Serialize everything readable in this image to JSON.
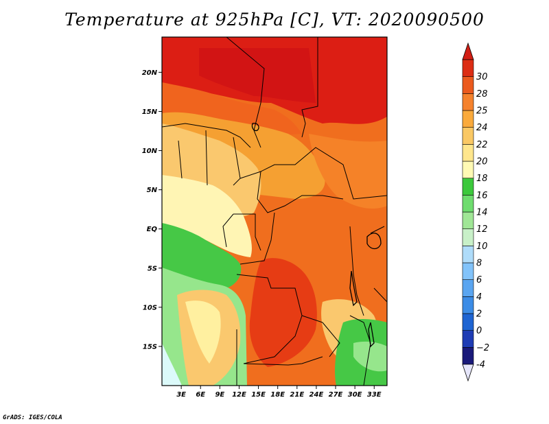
{
  "title": "Temperature at 925hPa [C], VT: 2020090500",
  "footer": "GrADS: IGES/COLA",
  "map": {
    "lon_range": [
      0,
      35
    ],
    "lat_range": [
      -20,
      24.5
    ],
    "lat_labels": [
      {
        "lat": 20,
        "label": "20N"
      },
      {
        "lat": 15,
        "label": "15N"
      },
      {
        "lat": 10,
        "label": "10N"
      },
      {
        "lat": 5,
        "label": "5N"
      },
      {
        "lat": 0,
        "label": "EQ"
      },
      {
        "lat": -5,
        "label": "5S"
      },
      {
        "lat": -10,
        "label": "10S"
      },
      {
        "lat": -15,
        "label": "15S"
      }
    ],
    "lon_labels": [
      {
        "lon": 3,
        "label": "3E"
      },
      {
        "lon": 6,
        "label": "6E"
      },
      {
        "lon": 9,
        "label": "9E"
      },
      {
        "lon": 12,
        "label": "12E"
      },
      {
        "lon": 15,
        "label": "15E"
      },
      {
        "lon": 18,
        "label": "18E"
      },
      {
        "lon": 21,
        "label": "21E"
      },
      {
        "lon": 24,
        "label": "24E"
      },
      {
        "lon": 27,
        "label": "27E"
      },
      {
        "lon": 30,
        "label": "30E"
      },
      {
        "lon": 33,
        "label": "33E"
      }
    ]
  },
  "colorbar": {
    "levels": [
      "-4",
      "−2",
      "0",
      "2",
      "4",
      "6",
      "8",
      "10",
      "12",
      "14",
      "16",
      "18",
      "20",
      "22",
      "24",
      "25",
      "28",
      "30"
    ],
    "colors": [
      "#1a1a7a",
      "#1e3cb4",
      "#1e64d2",
      "#3c8ce6",
      "#5aa5f0",
      "#82c3fa",
      "#afdcfa",
      "#c8f0c8",
      "#a0e696",
      "#6edc6e",
      "#3cc83c",
      "#fffab4",
      "#ffe68c",
      "#fac864",
      "#faaa3c",
      "#f5822d",
      "#eb5a1e",
      "#dc2d14"
    ],
    "under_color": "#e6e6fa",
    "over_color": "#d21e14"
  },
  "colors": {
    "hot": "#dc1e14",
    "warm": "#f0641e",
    "mild": "#f5a032",
    "cool": "#fac86e",
    "pale": "#fff5b4",
    "green": "#46c846",
    "lightgreen": "#96e68c",
    "cyan": "#dcfafa"
  }
}
